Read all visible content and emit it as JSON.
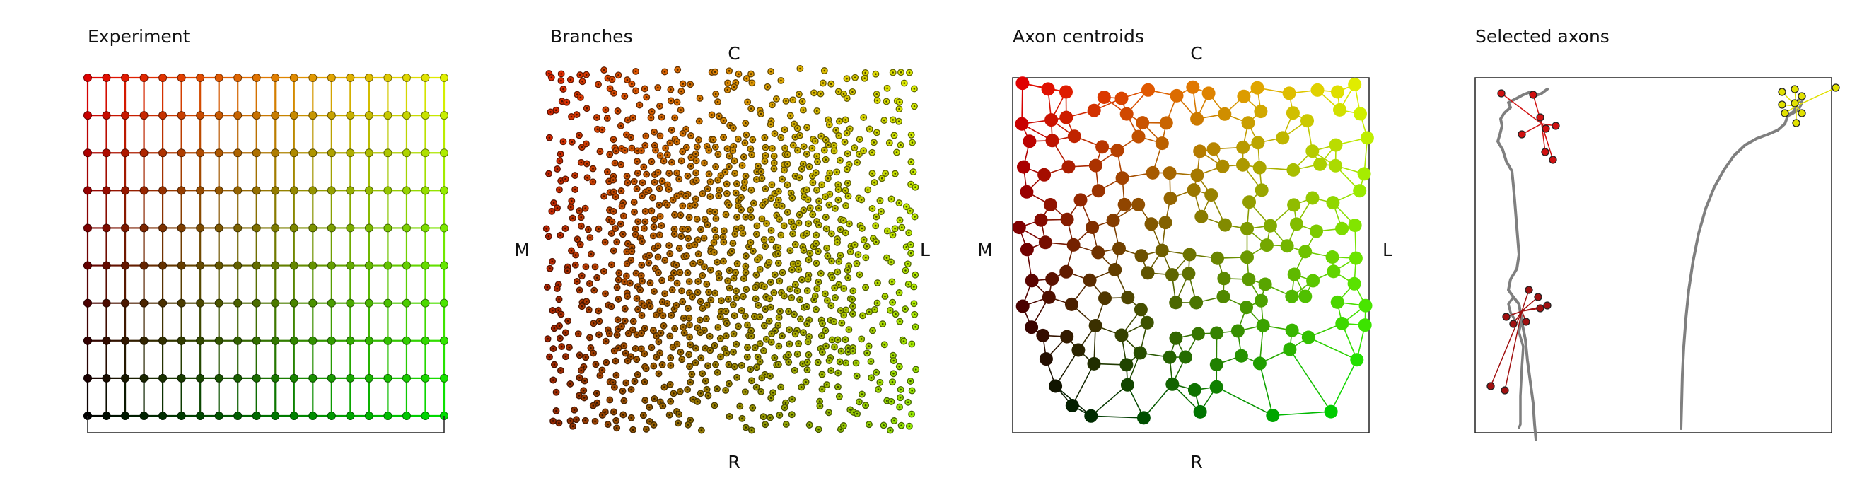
{
  "panels": {
    "experiment": {
      "title": "Experiment"
    },
    "branches": {
      "title": "Branches",
      "labels": {
        "top": "C",
        "bottom": "R",
        "left": "M",
        "right": "L"
      }
    },
    "centroids": {
      "title": "Axon centroids",
      "labels": {
        "top": "C",
        "bottom": "R",
        "left": "M",
        "right": "L"
      }
    },
    "selected": {
      "title": "Selected axons"
    }
  },
  "colors": {
    "top_left": "#e00000",
    "top_right": "#e0f000",
    "bottom_left": "#000000",
    "bottom_right": "#00e000",
    "axon_trace": "#7f7f7f",
    "frame": "#222222"
  },
  "experiment_grid": {
    "columns": 20,
    "rows": 10
  }
}
